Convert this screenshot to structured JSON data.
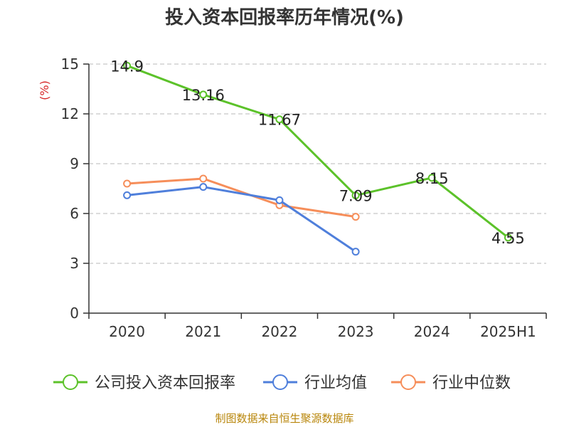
{
  "chart_data": {
    "type": "line",
    "title": "投入资本回报率历年情况(%)",
    "ylabel": "(%)",
    "categories": [
      "2020",
      "2021",
      "2022",
      "2023",
      "2024",
      "2025H1"
    ],
    "yticks": [
      "0",
      "3",
      "6",
      "9",
      "12",
      "15"
    ],
    "ylim": [
      0,
      15
    ],
    "grid": true,
    "legend_position": "bottom",
    "series": [
      {
        "name": "公司投入资本回报率",
        "color": "#5cc22a",
        "values": [
          14.9,
          13.16,
          11.67,
          7.09,
          8.15,
          4.55
        ],
        "labels": [
          "14.9",
          "13.16",
          "11.67",
          "7.09",
          "8.15",
          "4.55"
        ]
      },
      {
        "name": "行业均值",
        "color": "#4f7fdb",
        "values": [
          7.1,
          7.6,
          6.8,
          3.7,
          null,
          null
        ]
      },
      {
        "name": "行业中位数",
        "color": "#f68e5a",
        "values": [
          7.8,
          8.1,
          6.5,
          5.8,
          null,
          null
        ]
      }
    ]
  },
  "source": "制图数据来自恒生聚源数据库"
}
